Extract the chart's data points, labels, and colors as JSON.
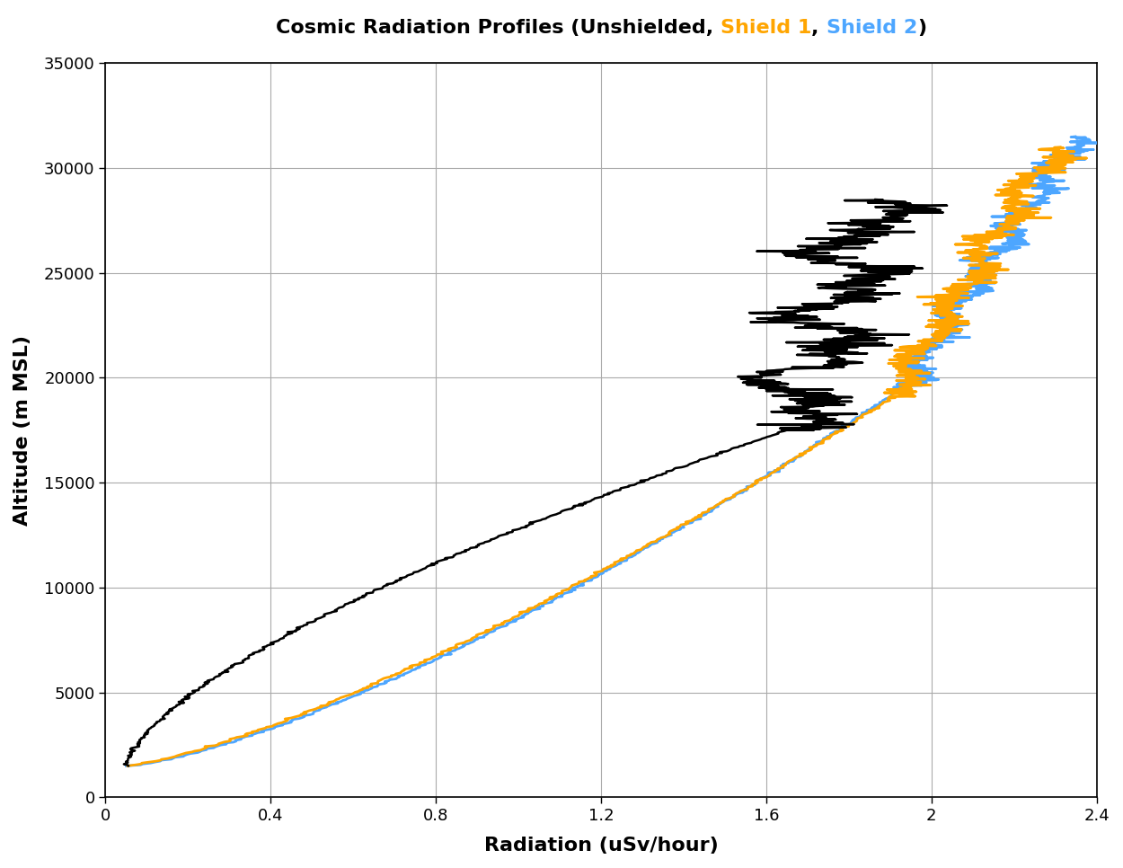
{
  "title_parts": [
    {
      "text": "Cosmic Radiation Profiles (Unshielded, ",
      "color": "black"
    },
    {
      "text": "Shield 1",
      "color": "#FFA500"
    },
    {
      "text": ", ",
      "color": "black"
    },
    {
      "text": "Shield 2",
      "color": "#4DA6FF"
    },
    {
      "text": ")",
      "color": "black"
    }
  ],
  "xlabel": "Radiation (uSv/hour)",
  "ylabel": "Altitude (m MSL)",
  "xlim": [
    0,
    2.4
  ],
  "ylim": [
    0,
    35000
  ],
  "xticks": [
    0,
    0.4,
    0.8,
    1.2,
    1.6,
    2.0,
    2.4
  ],
  "yticks": [
    0,
    5000,
    10000,
    15000,
    20000,
    25000,
    30000,
    35000
  ],
  "colors": {
    "unshielded": "#000000",
    "shield1": "#FFA500",
    "shield2": "#4DA6FF"
  },
  "background": "#ffffff",
  "grid_color": "#AAAAAA",
  "title_fontsize": 16,
  "axis_label_fontsize": 16,
  "tick_fontsize": 13
}
